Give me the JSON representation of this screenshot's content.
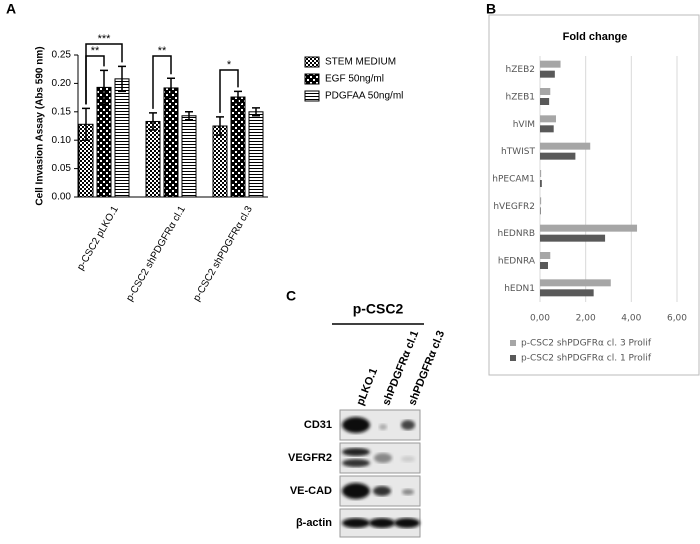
{
  "chart_data": [
    {
      "type": "bar",
      "panel": "A",
      "y_label": "Cell Invasion Assay (Abs 590 nm)",
      "categories": [
        "p-CSC2 pLKO.1",
        "p-CSC2 shPDGFRα cl.1",
        "p-CSC2 shPDGFRα cl.3"
      ],
      "series": [
        {
          "name": "STEM MEDIUM",
          "color": "#000000",
          "pattern": "checker",
          "values": [
            0.128,
            0.133,
            0.125
          ],
          "errors": [
            0.028,
            0.015,
            0.016
          ]
        },
        {
          "name": "EGF 50ng/ml",
          "color": "#000000",
          "pattern": "cross",
          "values": [
            0.193,
            0.192,
            0.176
          ],
          "errors": [
            0.03,
            0.017,
            0.01
          ]
        },
        {
          "name": "PDGFAA 50ng/ml",
          "color": "#000000",
          "pattern": "stripes",
          "values": [
            0.208,
            0.143,
            0.15
          ],
          "errors": [
            0.022,
            0.007,
            0.007
          ]
        }
      ],
      "annotations": [
        "**",
        "***",
        "**",
        "*"
      ],
      "ylim": [
        0,
        0.25
      ],
      "yticks": [
        {
          "value": 0,
          "label": "0.00"
        },
        {
          "value": 0.05,
          "label": "0.05"
        },
        {
          "value": 0.1,
          "label": "0.10"
        },
        {
          "value": 0.15,
          "label": "0.15"
        },
        {
          "value": 0.2,
          "label": "0.20"
        },
        {
          "value": 0.25,
          "label": "0.25"
        }
      ]
    },
    {
      "type": "hbar",
      "panel": "B",
      "title": "Fold change",
      "categories": [
        "hZEB2",
        "hZEB1",
        "hVIM",
        "hTWIST",
        "hPECAM1",
        "hVEGFR2",
        "hEDNRB",
        "hEDNRA",
        "hEDN1"
      ],
      "series": [
        {
          "name": "p-CSC2 shPDGFRα cl. 3 Prolif",
          "color": "#a6a6a6",
          "values": [
            0.9,
            0.45,
            0.7,
            2.2,
            0.05,
            0.05,
            4.25,
            0.45,
            3.1
          ]
        },
        {
          "name": "p-CSC2 shPDGFRα cl. 1 Prolif",
          "color": "#595959",
          "values": [
            0.65,
            0.4,
            0.6,
            1.55,
            0.08,
            0.03,
            2.85,
            0.35,
            2.35
          ]
        }
      ],
      "xlim": [
        0,
        6
      ],
      "xticks": [
        {
          "value": 0,
          "label": "0,00"
        },
        {
          "value": 2,
          "label": "2,00"
        },
        {
          "value": 4,
          "label": "4,00"
        },
        {
          "value": 6,
          "label": "6,00"
        }
      ],
      "grid": true
    }
  ],
  "panel_c": {
    "panel": "C",
    "title": "p-CSC2",
    "lanes": [
      "pLKO.1",
      "shPDGFRα cl.1",
      "shPDGFRα cl.3"
    ],
    "rows": [
      "CD31",
      "VEGFR2",
      "VE-CAD",
      "β-actin"
    ]
  }
}
